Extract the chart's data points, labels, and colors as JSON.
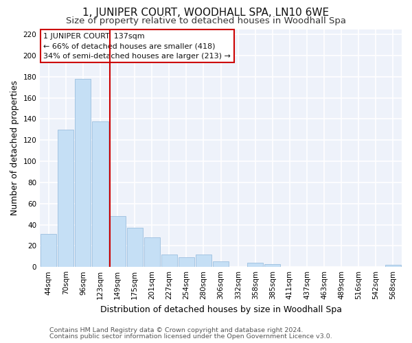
{
  "title": "1, JUNIPER COURT, WOODHALL SPA, LN10 6WE",
  "subtitle": "Size of property relative to detached houses in Woodhall Spa",
  "xlabel": "Distribution of detached houses by size in Woodhall Spa",
  "ylabel": "Number of detached properties",
  "bar_labels": [
    "44sqm",
    "70sqm",
    "96sqm",
    "123sqm",
    "149sqm",
    "175sqm",
    "201sqm",
    "227sqm",
    "254sqm",
    "280sqm",
    "306sqm",
    "332sqm",
    "358sqm",
    "385sqm",
    "411sqm",
    "437sqm",
    "463sqm",
    "489sqm",
    "516sqm",
    "542sqm",
    "568sqm"
  ],
  "bar_values": [
    31,
    130,
    178,
    138,
    48,
    37,
    28,
    12,
    9,
    12,
    5,
    0,
    4,
    3,
    0,
    0,
    0,
    0,
    0,
    0,
    2
  ],
  "bar_color": "#c5dff5",
  "bar_edge_color": "#9bbfdf",
  "reference_line_x": 3.57,
  "reference_line_color": "#cc0000",
  "annotation_line1": "1 JUNIPER COURT: 137sqm",
  "annotation_line2": "← 66% of detached houses are smaller (418)",
  "annotation_line3": "34% of semi-detached houses are larger (213) →",
  "annotation_box_color": "#ffffff",
  "annotation_box_edge": "#cc0000",
  "ylim": [
    0,
    225
  ],
  "yticks": [
    0,
    20,
    40,
    60,
    80,
    100,
    120,
    140,
    160,
    180,
    200,
    220
  ],
  "footer_line1": "Contains HM Land Registry data © Crown copyright and database right 2024.",
  "footer_line2": "Contains public sector information licensed under the Open Government Licence v3.0.",
  "bg_color": "#ffffff",
  "plot_bg_color": "#eef2fa",
  "grid_color": "#ffffff",
  "title_fontsize": 11,
  "subtitle_fontsize": 9.5,
  "axis_label_fontsize": 9,
  "tick_fontsize": 7.5,
  "footer_fontsize": 6.8,
  "annotation_fontsize": 8.0
}
